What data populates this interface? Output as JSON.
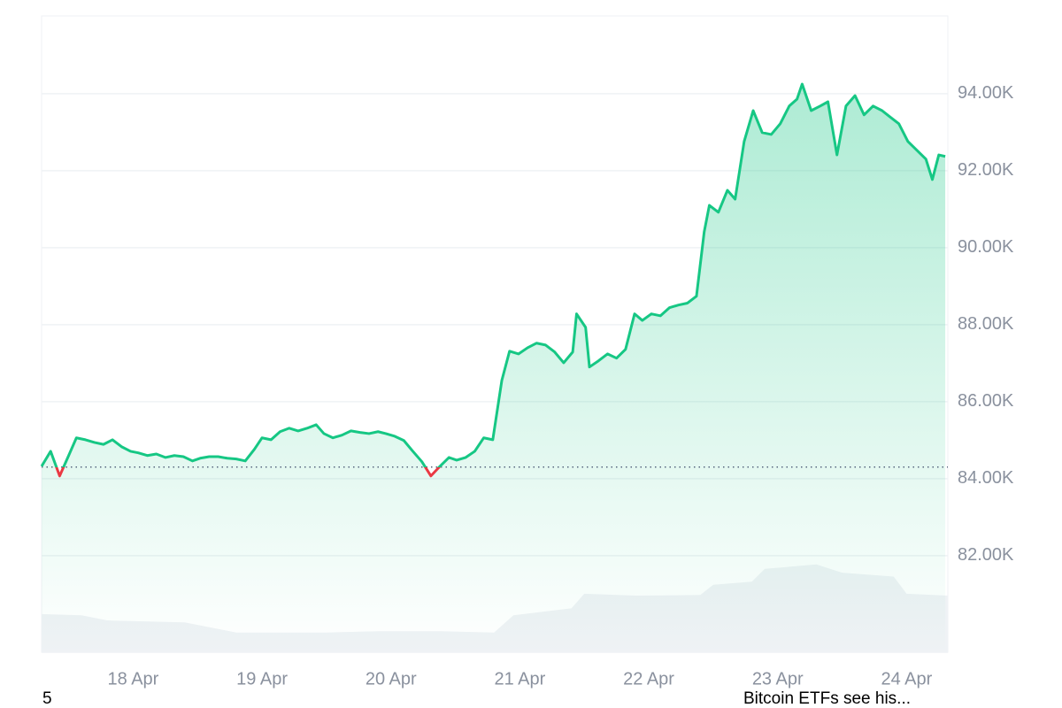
{
  "chart_data": {
    "type": "line",
    "color": "#16c784",
    "down_color": "#ea3943",
    "grid": true,
    "reference_line": 84300,
    "x": [
      17.29,
      17.36,
      17.43,
      17.5,
      17.56,
      17.63,
      17.7,
      17.77,
      17.84,
      17.91,
      17.98,
      18.04,
      18.11,
      18.18,
      18.25,
      18.32,
      18.39,
      18.46,
      18.52,
      18.59,
      18.66,
      18.73,
      18.8,
      18.87,
      18.94,
      19.0,
      19.07,
      19.14,
      19.21,
      19.28,
      19.35,
      19.42,
      19.48,
      19.55,
      19.62,
      19.69,
      19.76,
      19.83,
      19.9,
      19.96,
      20.03,
      20.1,
      20.17,
      20.24,
      20.31,
      20.38,
      20.45,
      20.51,
      20.58,
      20.65,
      20.72,
      20.79,
      20.86,
      20.92,
      20.99,
      21.06,
      21.13,
      21.2,
      21.27,
      21.34,
      21.41,
      21.44,
      21.51,
      21.54,
      21.61,
      21.68,
      21.75,
      21.82,
      21.89,
      21.95,
      22.02,
      22.09,
      22.16,
      22.23,
      22.3,
      22.37,
      22.43,
      22.47,
      22.54,
      22.61,
      22.67,
      22.74,
      22.81,
      22.88,
      22.95,
      23.02,
      23.09,
      23.15,
      23.19,
      23.26,
      23.33,
      23.39,
      23.46,
      23.53,
      23.6,
      23.67,
      23.74,
      23.81,
      23.87,
      23.94,
      24.01,
      24.08,
      24.15,
      24.2,
      24.25,
      24.3
    ],
    "values": [
      84320,
      84710,
      84070,
      84600,
      85060,
      85010,
      84940,
      84890,
      85010,
      84830,
      84710,
      84670,
      84600,
      84640,
      84550,
      84600,
      84570,
      84460,
      84530,
      84570,
      84570,
      84530,
      84510,
      84460,
      84760,
      85060,
      85010,
      85220,
      85310,
      85240,
      85310,
      85400,
      85170,
      85060,
      85130,
      85240,
      85200,
      85170,
      85220,
      85170,
      85100,
      84990,
      84710,
      84440,
      84070,
      84320,
      84550,
      84480,
      84550,
      84710,
      85060,
      85010,
      86550,
      87310,
      87240,
      87400,
      87520,
      87470,
      87290,
      87010,
      87290,
      88280,
      87930,
      86900,
      87060,
      87240,
      87130,
      87360,
      88280,
      88110,
      88280,
      88230,
      88440,
      88510,
      88560,
      88740,
      90410,
      91100,
      90920,
      91490,
      91260,
      92760,
      93560,
      92990,
      92940,
      93220,
      93680,
      93860,
      94250,
      93560,
      93680,
      93790,
      92410,
      93680,
      93950,
      93450,
      93680,
      93560,
      93400,
      93220,
      92760,
      92530,
      92300,
      91770,
      92410,
      92370
    ],
    "xlim": [
      17.29,
      24.32
    ],
    "xticks": [
      {
        "value": 18,
        "label": "18 Apr"
      },
      {
        "value": 19,
        "label": "19 Apr"
      },
      {
        "value": 20,
        "label": "20 Apr"
      },
      {
        "value": 21,
        "label": "21 Apr"
      },
      {
        "value": 22,
        "label": "22 Apr"
      },
      {
        "value": 23,
        "label": "23 Apr"
      },
      {
        "value": 24,
        "label": "24 Apr"
      }
    ],
    "ylim": [
      79490,
      96020
    ],
    "yticks": [
      {
        "value": 82000,
        "label": "82.00K"
      },
      {
        "value": 84000,
        "label": "84.00K"
      },
      {
        "value": 86000,
        "label": "86.00K"
      },
      {
        "value": 88000,
        "label": "88.00K"
      },
      {
        "value": 90000,
        "label": "90.00K"
      },
      {
        "value": 92000,
        "label": "92.00K"
      },
      {
        "value": 94000,
        "label": "94.00K"
      }
    ],
    "volume": {
      "color": "#eff2f5",
      "y2lim": [
        0,
        100
      ],
      "x": [
        17.29,
        17.6,
        17.8,
        18.4,
        18.8,
        19.5,
        19.9,
        20.4,
        20.8,
        20.95,
        21.4,
        21.5,
        21.9,
        22.4,
        22.5,
        22.8,
        22.9,
        23.3,
        23.5,
        23.9,
        24.0,
        24.32
      ],
      "values": [
        6.0,
        5.8,
        5.0,
        4.7,
        3.1,
        3.1,
        3.3,
        3.3,
        3.1,
        5.8,
        6.9,
        9.2,
        8.9,
        9.0,
        10.6,
        11.1,
        13.1,
        13.8,
        12.5,
        11.9,
        9.2,
        8.9
      ]
    }
  },
  "footer": {
    "left": "5",
    "right": "Bitcoin ETFs see his..."
  }
}
